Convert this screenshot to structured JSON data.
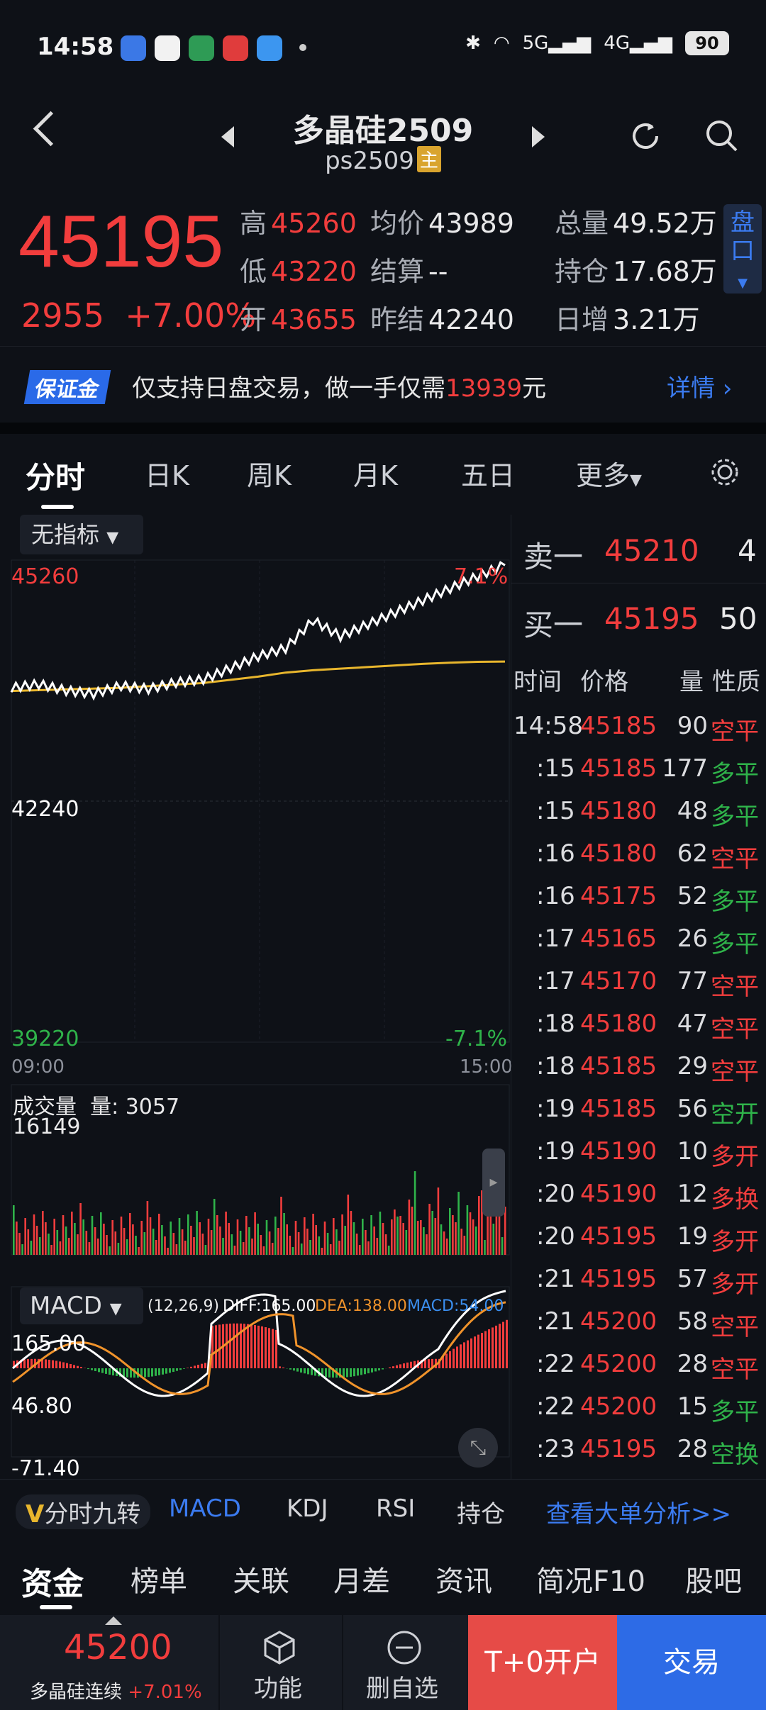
{
  "status": {
    "time": "14:58",
    "network1": "5G",
    "network2": "4G",
    "battery": "90"
  },
  "header": {
    "title": "多晶硅2509",
    "code": "ps2509",
    "main_badge": "主"
  },
  "quote": {
    "price": "45195",
    "change": "2955",
    "change_pct": "+7.00%",
    "high_label": "高",
    "high": "45260",
    "low_label": "低",
    "low": "43220",
    "open_label": "开",
    "open": "43655",
    "avg_label": "均价",
    "avg": "43989",
    "settle_label": "结算",
    "settle": "--",
    "prev_label": "昨结",
    "prev": "42240",
    "vol_label": "总量",
    "vol": "49.52万",
    "oi_label": "持仓",
    "oi": "17.68万",
    "daily_label": "日增",
    "daily": "3.21万",
    "pankou": "盘口"
  },
  "margin": {
    "tag": "保证金",
    "text_a": "仅支持日盘交易，做一手仅需",
    "amount": "13939",
    "text_b": "元",
    "detail": "详情"
  },
  "tabs": [
    "分时",
    "日K",
    "周K",
    "月K",
    "五日",
    "更多"
  ],
  "chart": {
    "indicator": "无指标",
    "top_price": "45260",
    "top_pct": "7.1%",
    "mid_price": "42240",
    "bot_price": "39220",
    "bot_pct": "-7.1%",
    "time_start": "09:00",
    "time_end": "15:00",
    "vol_title": "成交量",
    "vol_label": "量: 3057",
    "vol_max": "16149",
    "macd_sel": "MACD",
    "macd_params": "(12,26,9)",
    "diff": "DIFF:165.00",
    "dea": "DEA:138.00",
    "macd_val": "MACD:54.00",
    "macd_top": "165.00",
    "macd_mid": "46.80",
    "macd_bot": "-71.40"
  },
  "chart_data": {
    "type": "line",
    "price_range": [
      39220,
      45260
    ],
    "series": [
      {
        "name": "price",
        "values": [
          43655,
          43700,
          43620,
          43580,
          43680,
          43640,
          43720,
          43760,
          43900,
          44050,
          44150,
          44500,
          44300,
          44450,
          44600,
          44750,
          44900,
          45050,
          45195
        ]
      },
      {
        "name": "avg",
        "values": [
          43620,
          43630,
          43640,
          43650,
          43660,
          43680,
          43700,
          43720,
          43760,
          43800,
          43850,
          43880,
          43900,
          43920,
          43940,
          43960,
          43975,
          43985,
          43989
        ]
      }
    ]
  },
  "orderbook": {
    "sell_label": "卖一",
    "sell_price": "45210",
    "sell_qty": "4",
    "buy_label": "买一",
    "buy_price": "45195",
    "buy_qty": "50"
  },
  "ticks_header": {
    "time": "时间",
    "price": "价格",
    "qty": "量",
    "type": "性质"
  },
  "ticks": [
    {
      "t": "14:58",
      "p": "45185",
      "q": "90",
      "k": "空平",
      "c": "#f23d3d"
    },
    {
      "t": ":15",
      "p": "45185",
      "q": "177",
      "k": "多平",
      "c": "#2fb34a"
    },
    {
      "t": ":15",
      "p": "45180",
      "q": "48",
      "k": "多平",
      "c": "#2fb34a"
    },
    {
      "t": ":16",
      "p": "45180",
      "q": "62",
      "k": "空平",
      "c": "#f23d3d"
    },
    {
      "t": ":16",
      "p": "45175",
      "q": "52",
      "k": "多平",
      "c": "#2fb34a"
    },
    {
      "t": ":17",
      "p": "45165",
      "q": "26",
      "k": "多平",
      "c": "#2fb34a"
    },
    {
      "t": ":17",
      "p": "45170",
      "q": "77",
      "k": "空平",
      "c": "#f23d3d"
    },
    {
      "t": ":18",
      "p": "45180",
      "q": "47",
      "k": "空平",
      "c": "#f23d3d"
    },
    {
      "t": ":18",
      "p": "45185",
      "q": "29",
      "k": "空平",
      "c": "#f23d3d"
    },
    {
      "t": ":19",
      "p": "45185",
      "q": "56",
      "k": "空开",
      "c": "#2fb34a"
    },
    {
      "t": ":19",
      "p": "45190",
      "q": "10",
      "k": "多开",
      "c": "#f23d3d"
    },
    {
      "t": ":20",
      "p": "45190",
      "q": "12",
      "k": "多换",
      "c": "#f23d3d"
    },
    {
      "t": ":20",
      "p": "45195",
      "q": "19",
      "k": "多开",
      "c": "#f23d3d"
    },
    {
      "t": ":21",
      "p": "45195",
      "q": "57",
      "k": "多开",
      "c": "#f23d3d"
    },
    {
      "t": ":21",
      "p": "45200",
      "q": "58",
      "k": "空平",
      "c": "#f23d3d"
    },
    {
      "t": ":22",
      "p": "45200",
      "q": "28",
      "k": "空平",
      "c": "#f23d3d"
    },
    {
      "t": ":22",
      "p": "45200",
      "q": "15",
      "k": "多平",
      "c": "#2fb34a"
    },
    {
      "t": ":23",
      "p": "45195",
      "q": "28",
      "k": "空换",
      "c": "#2fb34a"
    }
  ],
  "indicator_bar": {
    "v": "V",
    "nine": "分时九转",
    "macd": "MACD",
    "kdj": "KDJ",
    "rsi": "RSI",
    "oi": "持仓",
    "big": "查看大单分析>>"
  },
  "nav_tabs": [
    "资金",
    "榜单",
    "关联",
    "月差",
    "资讯",
    "简况F10",
    "股吧"
  ],
  "bottom": {
    "price": "45200",
    "name": "多晶硅连续",
    "pct": "+7.01%",
    "func": "功能",
    "remove": "删自选",
    "t0": "T+0开户",
    "trade": "交易"
  }
}
